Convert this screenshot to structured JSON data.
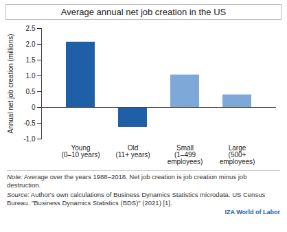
{
  "chart_data": {
    "type": "bar",
    "title": "Average annual net job creation in the US",
    "y_label": "Annual net job creation (millions)",
    "categories": [
      "Young\n(0–10 years)",
      "Old\n(11+ years)",
      "Small\n(1–499\nemployees)",
      "Large\n(500+\nemployees)"
    ],
    "values": [
      2.07,
      -0.63,
      1.03,
      0.4
    ],
    "colors": [
      "#1f5fa8",
      "#1f5fa8",
      "#7ea8d8",
      "#7ea8d8"
    ],
    "ylim": [
      -1.0,
      2.5
    ],
    "yticks": [
      {
        "value": -1.0,
        "label": "-1.0"
      },
      {
        "value": -0.5,
        "label": "-0.5"
      },
      0,
      0.5,
      {
        "value": 1.0,
        "label": "1.0"
      },
      1.5,
      {
        "value": 2.0,
        "label": "2.0"
      },
      2.5
    ],
    "grid": false,
    "note": "Note: Average over the years 1988–2018. Net job creation is job creation minus job destruction.",
    "source": "Source: Author's own calculations of Business Dynamics Statistics microdata. US Census Bureau. \"Business Dynamics Statistics (BDS)\" (2021) [1].",
    "credit": "IZA World of Labor"
  }
}
